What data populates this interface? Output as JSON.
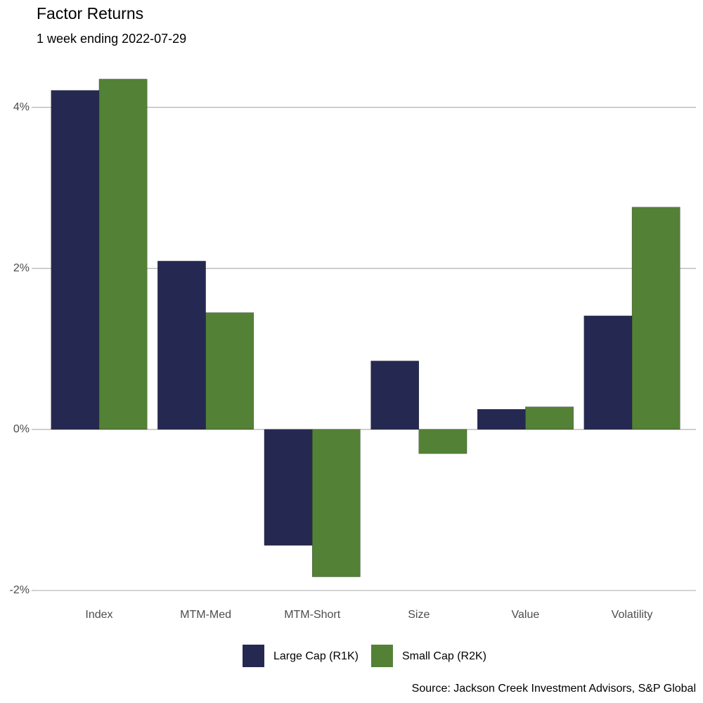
{
  "chart_data": {
    "type": "bar",
    "title": "Factor Returns",
    "subtitle": "1 week ending 2022-07-29",
    "caption": "Source: Jackson Creek Investment Advisors, S&P Global",
    "categories": [
      "Index",
      "MTM-Med",
      "MTM-Short",
      "Size",
      "Value",
      "Volatility"
    ],
    "series": [
      {
        "name": "Large Cap (R1K)",
        "color": "#252952",
        "values": [
          4.21,
          2.09,
          -1.44,
          0.85,
          0.25,
          1.41
        ]
      },
      {
        "name": "Small Cap (R2K)",
        "color": "#538135",
        "values": [
          4.35,
          1.45,
          -1.83,
          -0.3,
          0.28,
          2.76
        ]
      }
    ],
    "ylim": [
      -2.14,
      4.66
    ],
    "yticks": [
      {
        "value": -2,
        "label": "-2%"
      },
      {
        "value": 0,
        "label": "0%"
      },
      {
        "value": 2,
        "label": "2%"
      },
      {
        "value": 4,
        "label": "4%"
      }
    ],
    "grid": true,
    "legend": "bottom"
  }
}
